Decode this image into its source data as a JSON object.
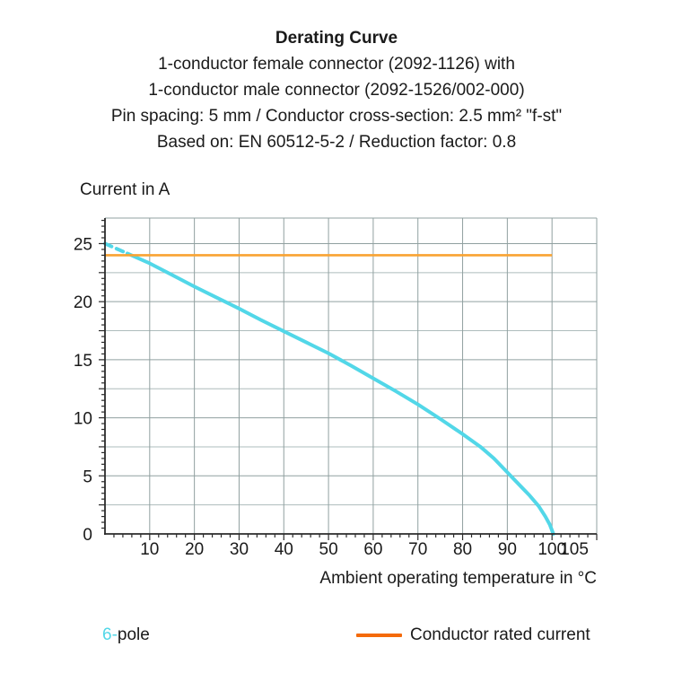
{
  "title": {
    "heading": "Derating Curve",
    "lines": [
      "1-conductor female connector (2092-1126) with",
      "1-conductor male connector (2092-1526/002-000)",
      "Pin spacing: 5 mm / Conductor cross-section: 2.5 mm² \"f-st\"",
      "Based on: EN 60512-5-2 / Reduction factor: 0.8"
    ]
  },
  "chart_data": {
    "type": "line",
    "title": "Derating Curve",
    "xlabel": "Ambient operating temperature in °C",
    "ylabel": "Current in A",
    "xlim": [
      0,
      110
    ],
    "ylim": [
      0,
      27.2
    ],
    "grid": true,
    "x_major_grid_step": 10,
    "y_major_grid_step": 2.5,
    "x_minor_tick_step": 2,
    "y_minor_tick_step": 0.5,
    "x_tick_labels": [
      10,
      20,
      30,
      40,
      50,
      60,
      70,
      80,
      90,
      100,
      105
    ],
    "y_tick_labels": [
      0,
      5,
      10,
      15,
      20,
      25
    ],
    "legend_position": "bottom",
    "series": [
      {
        "name": "6-pole",
        "type": "curve",
        "color": "#52d7e8",
        "dashed_until_x": 5,
        "points": [
          [
            0,
            25
          ],
          [
            5,
            24.15
          ],
          [
            10,
            23.3
          ],
          [
            15,
            22.3
          ],
          [
            20,
            21.3
          ],
          [
            25,
            20.35
          ],
          [
            30,
            19.4
          ],
          [
            35,
            18.4
          ],
          [
            40,
            17.45
          ],
          [
            45,
            16.5
          ],
          [
            50,
            15.55
          ],
          [
            55,
            14.5
          ],
          [
            60,
            13.4
          ],
          [
            65,
            12.3
          ],
          [
            70,
            11.15
          ],
          [
            75,
            9.9
          ],
          [
            80,
            8.6
          ],
          [
            84,
            7.5
          ],
          [
            87,
            6.5
          ],
          [
            90,
            5.3
          ],
          [
            93,
            4.1
          ],
          [
            95,
            3.3
          ],
          [
            97,
            2.4
          ],
          [
            98.5,
            1.5
          ],
          [
            99.5,
            0.8
          ],
          [
            100.3,
            0
          ]
        ]
      },
      {
        "name": "Conductor rated current",
        "type": "hline",
        "color": "#f9a332",
        "y": 24,
        "x_start": 0,
        "x_end": 100
      }
    ]
  },
  "legend": {
    "pole": {
      "prefix": "6-",
      "label": "pole",
      "color": "#52d7e8"
    },
    "rated": {
      "label": "Conductor rated current",
      "swatch_color": "#f46a0a"
    }
  },
  "colors": {
    "text": "#1a1a1a",
    "axis": "#2b2b2b",
    "grid_major": "#90a0a0",
    "grid_minor": "#aebcbc",
    "curve": "#52d7e8",
    "rated_line": "#f9a332",
    "legend_swatch": "#f46a0a"
  }
}
